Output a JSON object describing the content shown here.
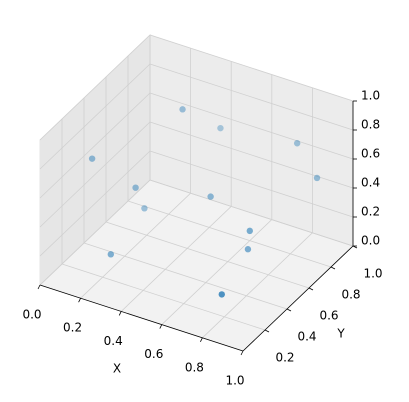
{
  "chart_data": {
    "type": "scatter3d",
    "x": [
      0.35,
      0.45,
      0.79,
      0.885,
      0.04,
      0.2,
      0.51,
      0.2,
      0.73,
      0.71,
      0.17,
      0.76
    ],
    "y": [
      0.65,
      0.81,
      0.88,
      0.885,
      0.4,
      0.5,
      0.61,
      0.58,
      0.56,
      0.58,
      0.33,
      0.25
    ],
    "z": [
      0.9,
      0.7,
      0.7,
      0.5,
      0.6,
      0.4,
      0.4,
      0.2,
      0.3,
      0.15,
      0.05,
      0.1
    ],
    "color": "#1f77b4",
    "xlabel": "X",
    "ylabel": "Y",
    "xlim": [
      0,
      1
    ],
    "ylim": [
      0,
      1
    ],
    "zlim": [
      0,
      1
    ],
    "xticks": [
      {
        "value": 0,
        "label": "0.0"
      },
      0.2,
      0.4,
      0.6,
      0.8,
      {
        "value": 1,
        "label": "1.0"
      }
    ],
    "yticks": [
      0.2,
      0.4,
      0.6,
      0.8,
      {
        "value": 1,
        "label": "1.0"
      }
    ],
    "zticks": [
      {
        "value": 0,
        "label": "0.0"
      },
      0.2,
      0.4,
      0.6,
      0.8,
      {
        "value": 1,
        "label": "1.0"
      }
    ],
    "grid": true
  }
}
